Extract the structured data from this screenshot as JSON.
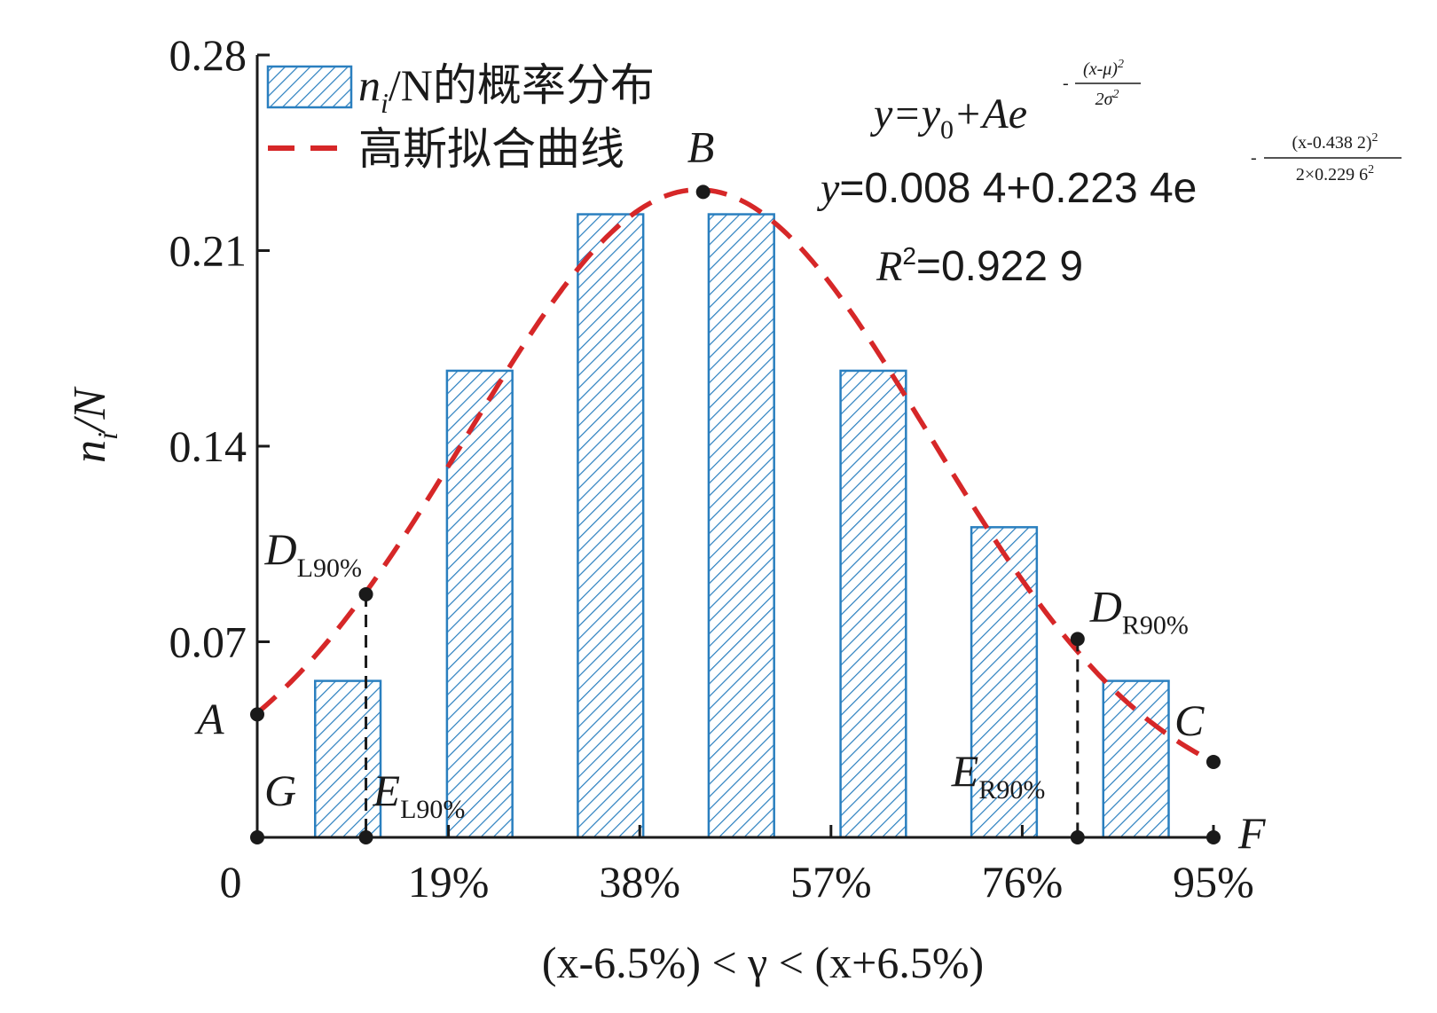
{
  "chart_data": {
    "type": "bar",
    "ylabel": {
      "main": "n",
      "sub": "i",
      "rest": "/N"
    },
    "xlabel": "(x-6.5%) < γ < (x+6.5%)",
    "xlim": [
      0,
      95
    ],
    "ylim": [
      0,
      0.28
    ],
    "y_ticks": [
      0.07,
      0.14,
      0.21,
      0.28
    ],
    "y_tick_labels": [
      "0.07",
      "0.14",
      "0.21",
      "0.28"
    ],
    "x_ticks": [
      0,
      19,
      38,
      57,
      76,
      95
    ],
    "x_tick_labels": [
      "0",
      "19%",
      "38%",
      "57%",
      "76%",
      "95%"
    ],
    "bars": [
      {
        "x": 9.0,
        "value": 0.056
      },
      {
        "x": 22.1,
        "value": 0.167
      },
      {
        "x": 35.1,
        "value": 0.223
      },
      {
        "x": 48.1,
        "value": 0.223
      },
      {
        "x": 61.2,
        "value": 0.167
      },
      {
        "x": 74.2,
        "value": 0.111
      },
      {
        "x": 87.3,
        "value": 0.056
      }
    ],
    "curve": {
      "name": "高斯拟合曲线",
      "y0": 0.0084,
      "A": 0.2234,
      "mu": 0.4382,
      "sigma": 0.2296,
      "color": "#d62728",
      "dash": true
    },
    "bar_series_name": {
      "n": "n",
      "sub": "i",
      "rest": "/N的概率分布"
    },
    "bar_color": "#2a7fbf",
    "points": [
      {
        "label": "A",
        "sub": "",
        "x": 0,
        "y": 0.044,
        "label_pos": "left"
      },
      {
        "label": "B",
        "sub": "",
        "x": 44.3,
        "y": 0.231,
        "label_pos": "above"
      },
      {
        "label": "C",
        "sub": "",
        "x": 95,
        "y": 0.027,
        "label_pos": "above-left"
      },
      {
        "label": "D",
        "sub": "L90%",
        "x": 10.8,
        "y": 0.087,
        "label_pos": "above-left"
      },
      {
        "label": "D",
        "sub": "R90%",
        "x": 81.5,
        "y": 0.071,
        "label_pos": "right"
      },
      {
        "label": "E",
        "sub": "L90%",
        "x": 10.8,
        "y": 0,
        "label_pos": "above-right"
      },
      {
        "label": "E",
        "sub": "R90%",
        "x": 81.5,
        "y": 0,
        "label_pos": "above-left"
      },
      {
        "label": "G",
        "sub": "",
        "x": 0,
        "y": 0,
        "label_pos": "above-right"
      },
      {
        "label": "F",
        "sub": "",
        "x": 95,
        "y": 0,
        "label_pos": "right"
      }
    ],
    "equations": {
      "general": {
        "lhs": "y=y",
        "sub0": "0",
        "mid": "+Ae",
        "exp_num": "(x-μ)",
        "exp_den": "2σ"
      },
      "fitted": {
        "lhs": "y=0.008 4+0.223 4e",
        "exp_num": "(x-0.438 2)",
        "exp_den": "2×0.229 6"
      },
      "r2": {
        "R": "R",
        "rest": "=0.922 9"
      },
      "sup2": "2",
      "minus": "-"
    },
    "legend": "top-left",
    "grid": false
  }
}
